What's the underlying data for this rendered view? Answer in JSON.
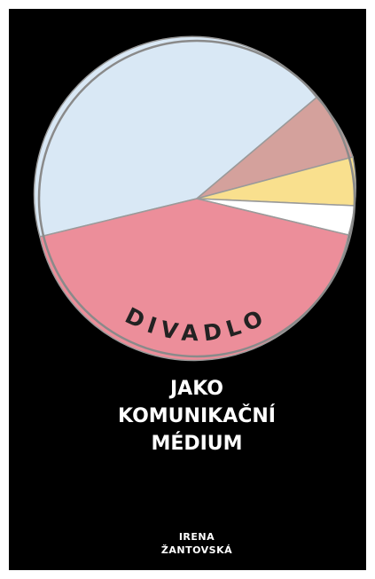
{
  "cover": {
    "arc_title": "DIVADLO",
    "title": [
      "JAKO",
      "KOMUNIKAČNÍ",
      "MÉDIUM"
    ],
    "author": [
      "IRENA",
      "ŽANTOVSKÁ"
    ]
  }
}
